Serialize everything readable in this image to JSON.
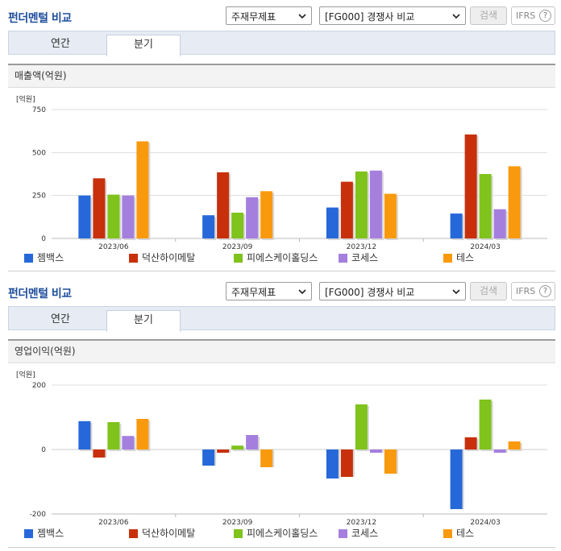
{
  "panels": [
    {
      "title": "펀더멘털 비교",
      "select_statement": "주재무제표",
      "select_group": "[FG000] 경쟁사 비교",
      "search_label": "검색",
      "ifrs_label": "IFRS",
      "help_label": "?",
      "tabs": [
        "연간",
        "분기"
      ],
      "active_tab": "분기",
      "section_label": "매출액(억원)"
    },
    {
      "title": "펀더멘털 비교",
      "select_statement": "주재무제표",
      "select_group": "[FG000] 경쟁사 비교",
      "search_label": "검색",
      "ifrs_label": "IFRS",
      "help_label": "?",
      "tabs": [
        "연간",
        "분기"
      ],
      "active_tab": "분기",
      "section_label": "영업이익(억원)"
    }
  ],
  "legend": [
    {
      "name": "젬백스",
      "color": "#2668d9"
    },
    {
      "name": "덕산하이메탈",
      "color": "#c8300c"
    },
    {
      "name": "피에스케이홀딩스",
      "color": "#7fc31c"
    },
    {
      "name": "코세스",
      "color": "#a57fde"
    },
    {
      "name": "테스",
      "color": "#f99a0e"
    }
  ],
  "chart_data": [
    {
      "type": "bar",
      "unit_label": "[억원]",
      "categories": [
        "2023/06",
        "2023/09",
        "2023/12",
        "2024/03"
      ],
      "ylim": [
        0,
        750
      ],
      "yticks": [
        "0",
        "250",
        "500",
        "750"
      ],
      "grid": true,
      "legend_position": "bottom",
      "series": [
        {
          "name": "젬백스",
          "values": [
            250,
            135,
            180,
            145
          ]
        },
        {
          "name": "덕산하이메탈",
          "values": [
            350,
            385,
            330,
            605
          ]
        },
        {
          "name": "피에스케이홀딩스",
          "values": [
            255,
            150,
            390,
            375
          ]
        },
        {
          "name": "코세스",
          "values": [
            250,
            240,
            395,
            170
          ]
        },
        {
          "name": "테스",
          "values": [
            565,
            275,
            260,
            420
          ]
        }
      ]
    },
    {
      "type": "bar",
      "unit_label": "[억원]",
      "categories": [
        "2023/06",
        "2023/09",
        "2023/12",
        "2024/03"
      ],
      "ylim": [
        -200,
        200
      ],
      "yticks": [
        "-200",
        "0",
        "200"
      ],
      "grid": true,
      "legend_position": "bottom",
      "series": [
        {
          "name": "젬백스",
          "values": [
            88,
            -50,
            -90,
            -185
          ]
        },
        {
          "name": "덕산하이메탈",
          "values": [
            -25,
            -10,
            -85,
            38
          ]
        },
        {
          "name": "피에스케이홀딩스",
          "values": [
            85,
            12,
            140,
            155
          ]
        },
        {
          "name": "코세스",
          "values": [
            42,
            45,
            -10,
            -10
          ]
        },
        {
          "name": "테스",
          "values": [
            95,
            -55,
            -75,
            25
          ]
        }
      ]
    }
  ]
}
